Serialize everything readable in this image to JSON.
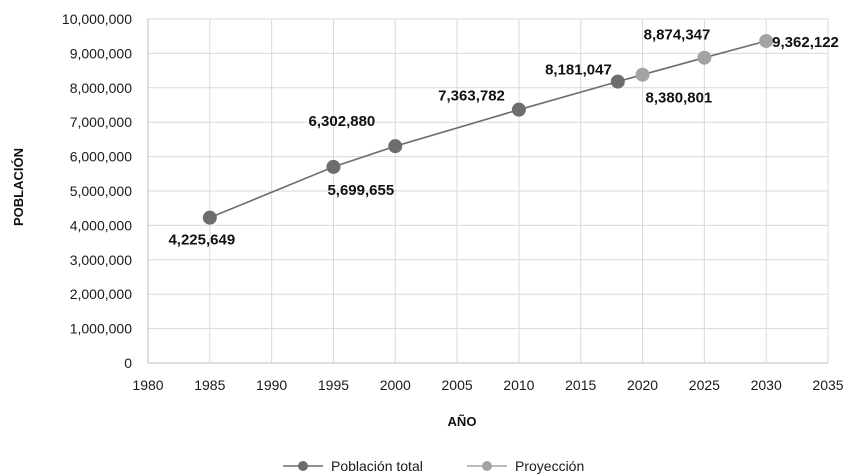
{
  "chart_data": {
    "type": "line",
    "xlabel": "AÑO",
    "ylabel": "POBLACIÓN",
    "xlim": [
      1980,
      2035
    ],
    "ylim": [
      0,
      10000000
    ],
    "x_ticks": [
      "1980",
      "1985",
      "1990",
      "1995",
      "2000",
      "2005",
      "2010",
      "2015",
      "2020",
      "2025",
      "2030",
      "2035"
    ],
    "y_ticks": [
      "0",
      "1,000,000",
      "2,000,000",
      "3,000,000",
      "4,000,000",
      "5,000,000",
      "6,000,000",
      "7,000,000",
      "8,000,000",
      "9,000,000",
      "10,000,000"
    ],
    "grid": true,
    "legend_position": "bottom",
    "series": [
      {
        "name": "Población total",
        "color": "#6d6d6d",
        "points": [
          {
            "x": 1985,
            "y": 4225649,
            "label": "4,225,649"
          },
          {
            "x": 1995,
            "y": 5699655,
            "label": "5,699,655"
          },
          {
            "x": 2000,
            "y": 6302880,
            "label": "6,302,880"
          },
          {
            "x": 2010,
            "y": 7363782,
            "label": "7,363,782"
          },
          {
            "x": 2018,
            "y": 8181047,
            "label": "8,181,047"
          }
        ]
      },
      {
        "name": "Proyección",
        "color": "#a3a3a3",
        "points": [
          {
            "x": 2020,
            "y": 8380801,
            "label": "8,380,801"
          },
          {
            "x": 2025,
            "y": 8874347,
            "label": "8,874,347"
          },
          {
            "x": 2030,
            "y": 9362122,
            "label": "9,362,122"
          }
        ]
      }
    ]
  }
}
